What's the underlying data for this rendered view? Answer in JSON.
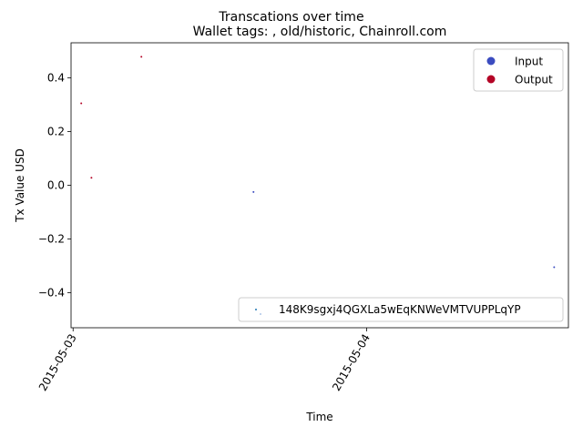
{
  "chart_data": {
    "type": "scatter",
    "suptitle": "Transcations over time",
    "title": "Wallet tags: , old/historic, Chainroll.com",
    "xlabel": "Time",
    "ylabel": "Tx Value USD",
    "x_range": [
      "2015-05-02 23:50",
      "2015-05-04 16:30"
    ],
    "ylim": [
      -0.53,
      0.53
    ],
    "y_ticks": [
      -0.4,
      -0.2,
      0.0,
      0.2,
      0.4
    ],
    "y_tick_labels": [
      "−0.4",
      "−0.2",
      "0.0",
      "0.2",
      "0.4"
    ],
    "x_ticks": [
      "2015-05-03 00:00",
      "2015-05-04 00:00"
    ],
    "x_tick_labels": [
      "2015-05-03",
      "2015-05-04"
    ],
    "grid": false,
    "legend_placement": "top-right",
    "series": [
      {
        "name": "Input",
        "color": "#3b4cc0",
        "points": [
          {
            "x": "2015-05-03 14:45",
            "y": -0.025
          },
          {
            "x": "2015-05-04 15:20",
            "y": -0.305
          }
        ]
      },
      {
        "name": "Output",
        "color": "#b40426",
        "points": [
          {
            "x": "2015-05-03 00:40",
            "y": 0.305
          },
          {
            "x": "2015-05-03 01:30",
            "y": 0.028
          },
          {
            "x": "2015-05-03 05:35",
            "y": 0.478
          }
        ]
      }
    ],
    "wallet_legend": {
      "label": "148K9sgxj4QGXLa5wEqKNWeVMTVUPPLqYP",
      "colors": [
        "#1f77b4",
        "#aec7e8"
      ]
    }
  }
}
